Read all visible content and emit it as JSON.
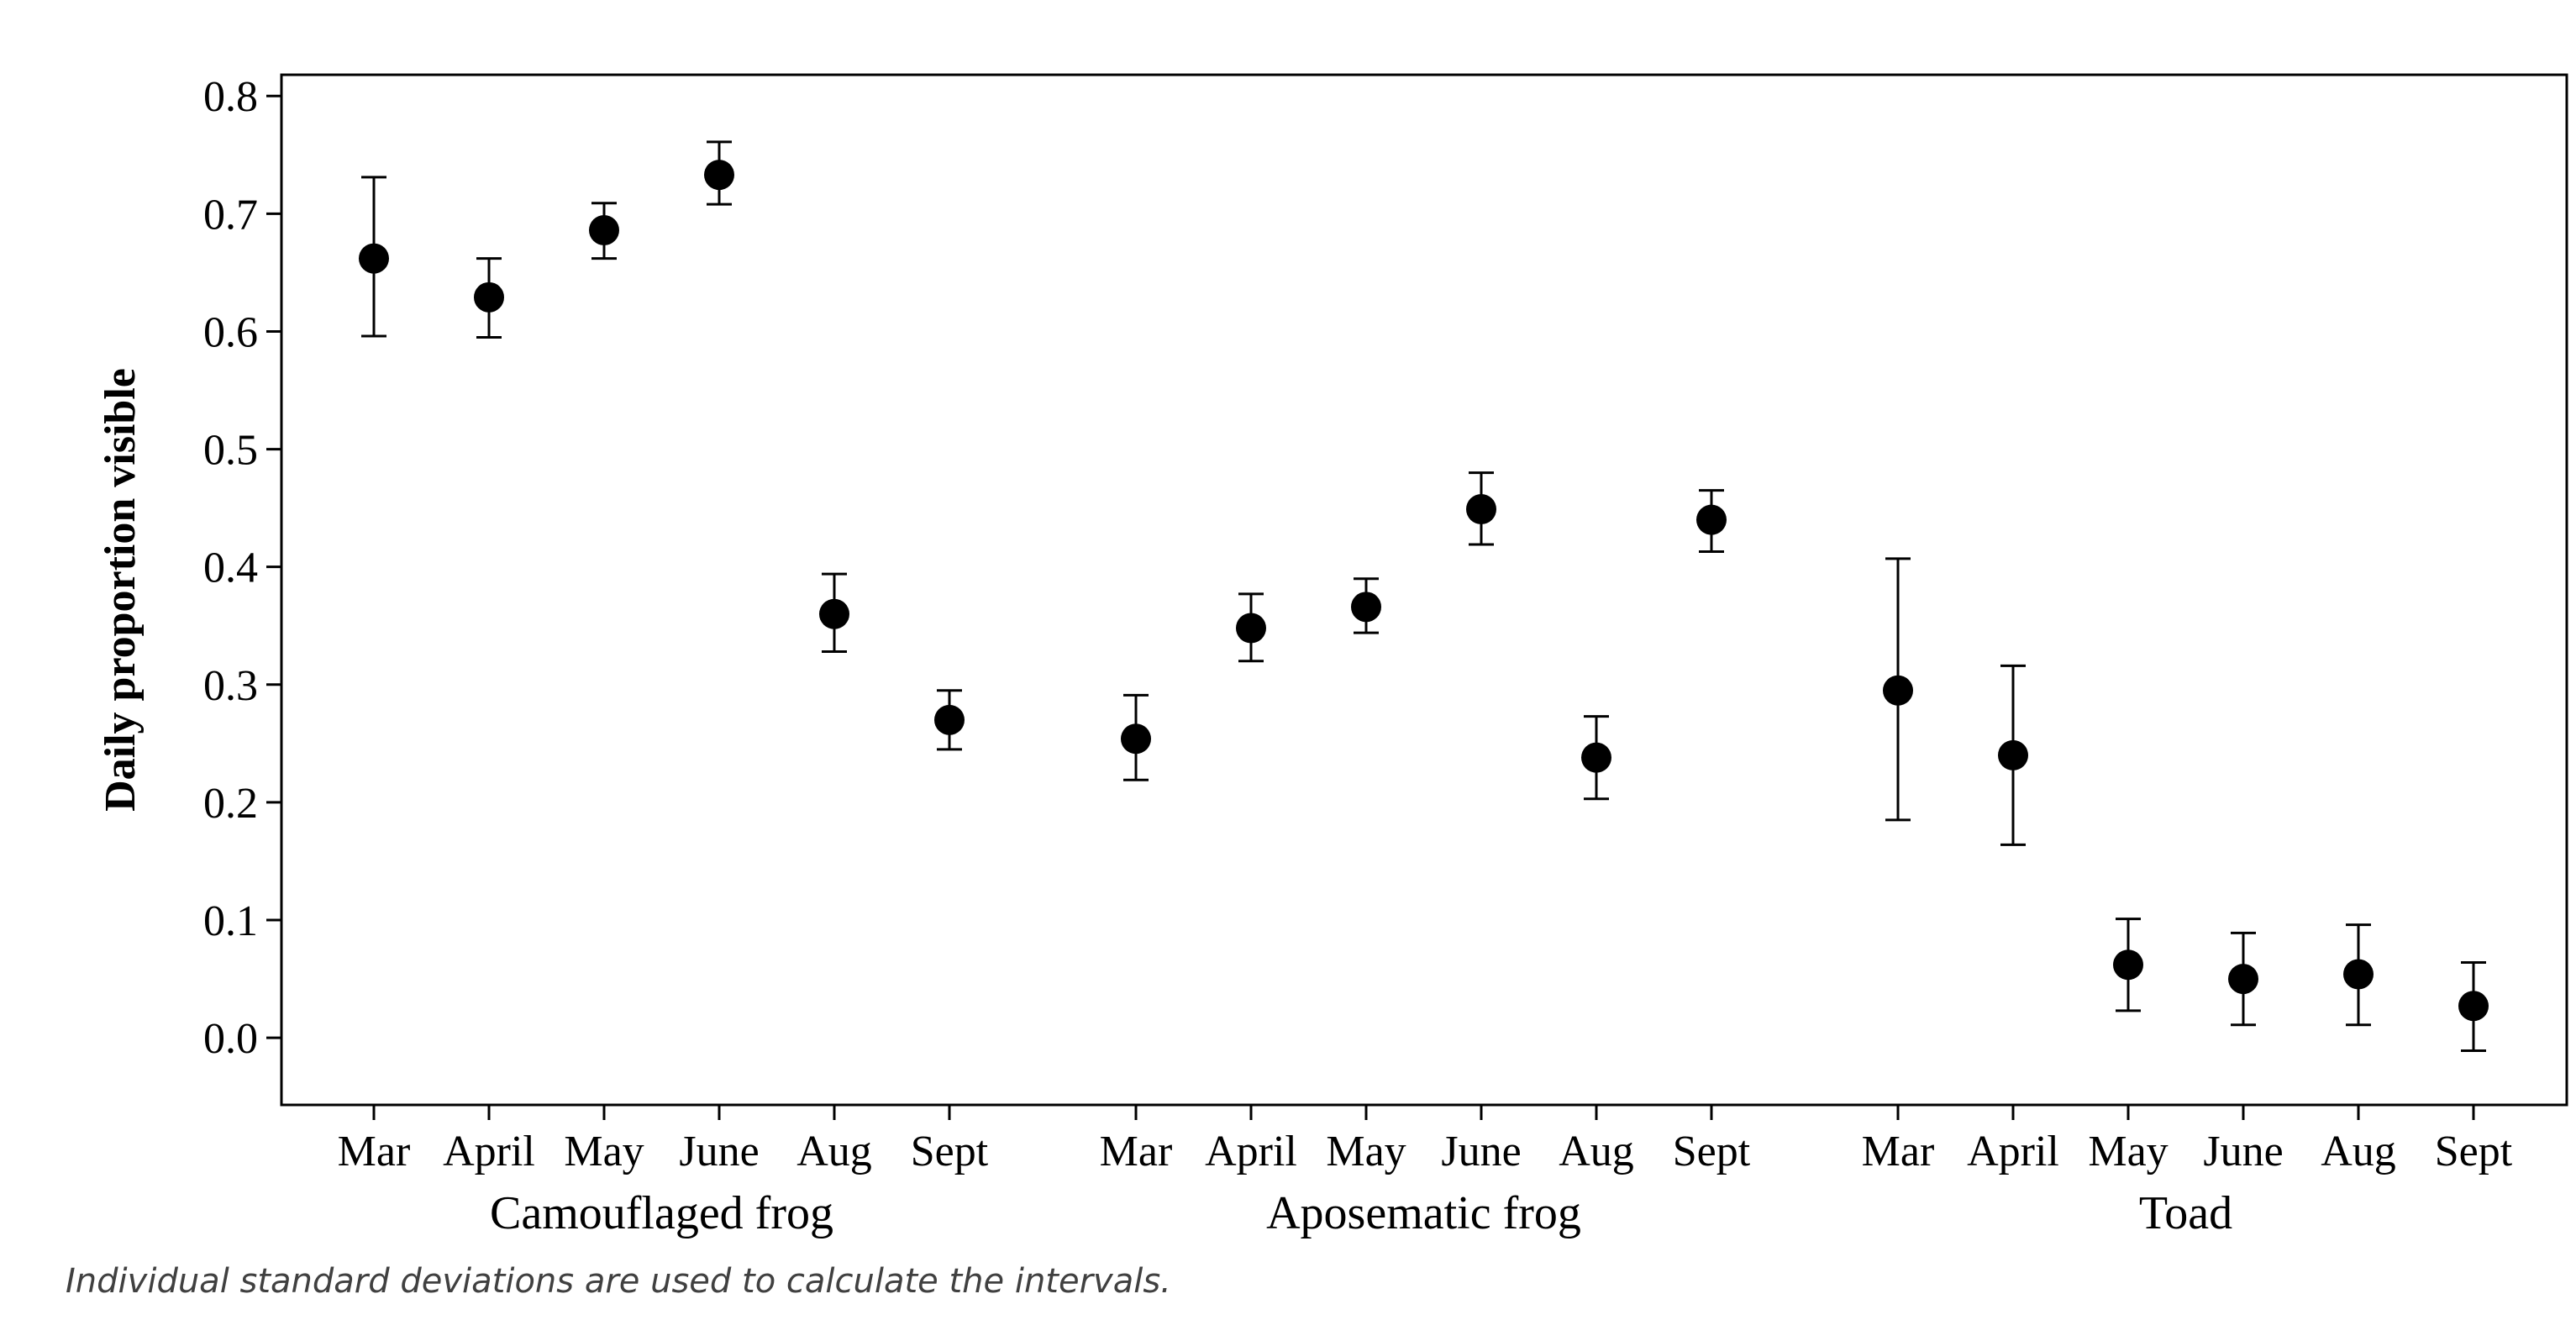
{
  "chart_data": {
    "type": "scatter",
    "ylabel": "Daily proportion visible",
    "ylim": [
      -0.057,
      0.818
    ],
    "yticks": [
      0.0,
      0.1,
      0.2,
      0.3,
      0.4,
      0.5,
      0.6,
      0.7,
      0.8
    ],
    "ytick_labels": [
      "0.0",
      "0.1",
      "0.2",
      "0.3",
      "0.4",
      "0.5",
      "0.6",
      "0.7",
      "0.8"
    ],
    "grid": false,
    "error_bars": "Individual standard deviations",
    "groups": [
      {
        "name": "Camouflaged frog",
        "categories": [
          "Mar",
          "April",
          "May",
          "June",
          "Aug",
          "Sept"
        ],
        "values": [
          0.662,
          0.629,
          0.686,
          0.733,
          0.36,
          0.27
        ],
        "lower": [
          0.596,
          0.595,
          0.662,
          0.708,
          0.328,
          0.245
        ],
        "upper": [
          0.731,
          0.662,
          0.709,
          0.761,
          0.394,
          0.295
        ]
      },
      {
        "name": "Aposematic frog",
        "categories": [
          "Mar",
          "April",
          "May",
          "June",
          "Aug",
          "Sept"
        ],
        "values": [
          0.254,
          0.348,
          0.366,
          0.449,
          0.238,
          0.44
        ],
        "lower": [
          0.219,
          0.32,
          0.344,
          0.419,
          0.203,
          0.413
        ],
        "upper": [
          0.291,
          0.377,
          0.39,
          0.48,
          0.273,
          0.465
        ]
      },
      {
        "name": "Toad",
        "categories": [
          "Mar",
          "April",
          "May",
          "June",
          "Aug",
          "Sept"
        ],
        "values": [
          0.295,
          0.24,
          0.062,
          0.05,
          0.054,
          0.027
        ],
        "lower": [
          0.185,
          0.164,
          0.023,
          0.011,
          0.011,
          -0.011
        ],
        "upper": [
          0.407,
          0.316,
          0.101,
          0.089,
          0.096,
          0.064
        ]
      }
    ]
  },
  "footnote": "Individual standard deviations are used to calculate the intervals."
}
